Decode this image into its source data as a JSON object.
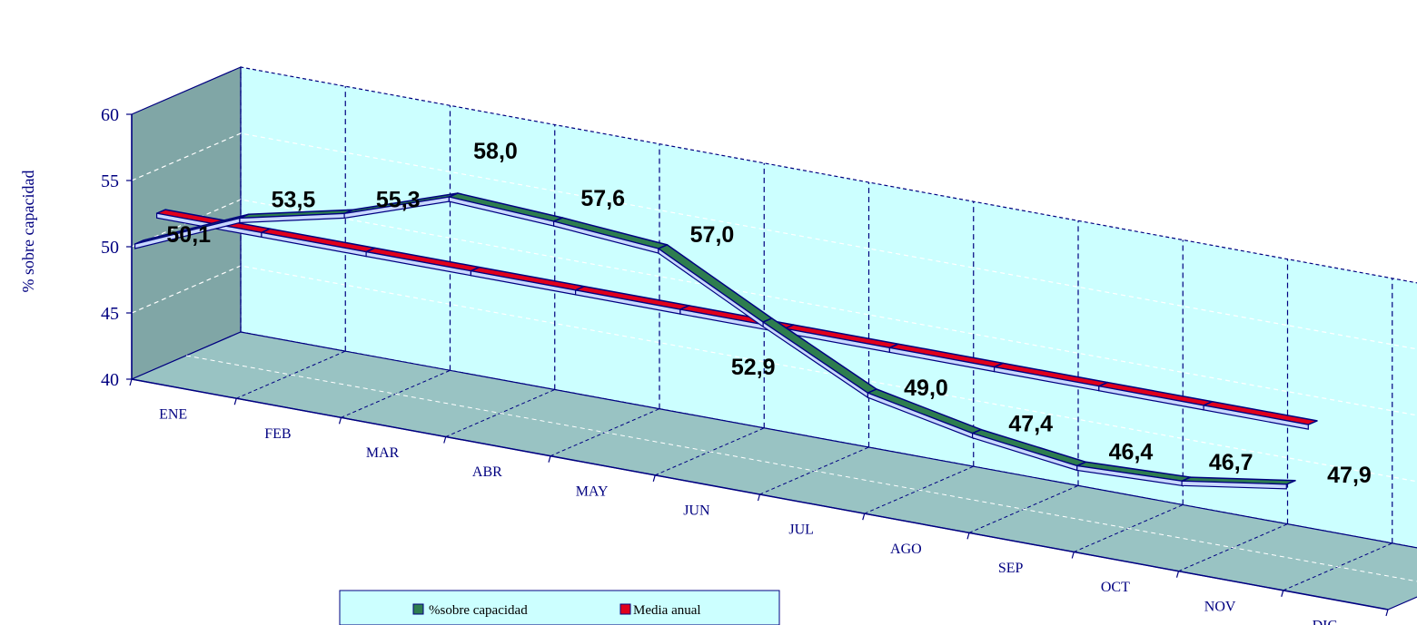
{
  "chart_data": {
    "type": "line",
    "title": "",
    "xlabel": "",
    "ylabel": "% sobre capacidad",
    "categories": [
      "ENE",
      "FEB",
      "MAR",
      "ABR",
      "MAY",
      "JUN",
      "JUL",
      "AGO",
      "SEP",
      "OCT",
      "NOV",
      "DIC"
    ],
    "ylim": [
      40,
      60
    ],
    "yticks": [
      40,
      45,
      50,
      55,
      60
    ],
    "grid": true,
    "legend_position": "bottom",
    "three_d": true,
    "series": [
      {
        "name": "%sobre capacidad",
        "color": "#2E7D4F",
        "values": [
          50.1,
          53.5,
          55.3,
          58.0,
          57.6,
          57.0,
          52.9,
          49.0,
          47.4,
          46.4,
          46.7,
          47.9
        ],
        "labels": [
          "50,1",
          "53,5",
          "55,3",
          "58,0",
          "57,6",
          "57,0",
          "52,9",
          "49,0",
          "47,4",
          "46,4",
          "46,7",
          "47,9"
        ]
      },
      {
        "name": "Media anual",
        "color": "#E0001B",
        "values": [
          51.7,
          51.7,
          51.7,
          51.7,
          51.7,
          51.7,
          51.7,
          51.7,
          51.7,
          51.7,
          51.7,
          51.7
        ]
      }
    ],
    "colors": {
      "back_wall": "#ccffff",
      "side_wall": "#80a6a6",
      "floor": "#99c3c3",
      "axis": "#000080",
      "legend_bg": "#ccffff"
    }
  }
}
